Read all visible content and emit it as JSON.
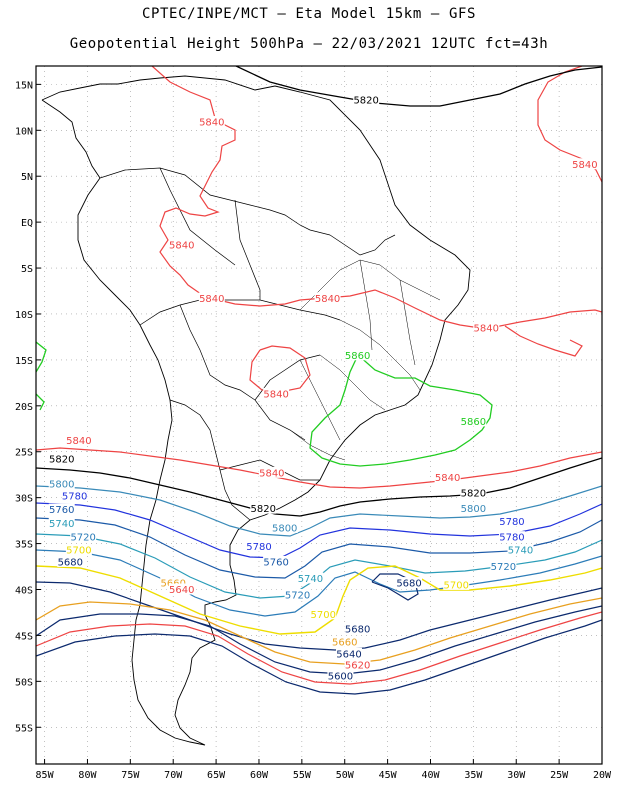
{
  "title": {
    "line1": "CPTEC/INPE/MCT –  Eta Model 15km – GFS",
    "line2": "Geopotential Height 500hPa – 22/03/2021 12UTC fct=43h"
  },
  "map": {
    "lat_range": [
      -59,
      17
    ],
    "lon_range": [
      -86,
      -20
    ],
    "lat_ticks": [
      {
        "value": 15,
        "label": "15N"
      },
      {
        "value": 10,
        "label": "10N"
      },
      {
        "value": 5,
        "label": "5N"
      },
      {
        "value": 0,
        "label": "EQ"
      },
      {
        "value": -5,
        "label": "5S"
      },
      {
        "value": -10,
        "label": "10S"
      },
      {
        "value": -15,
        "label": "15S"
      },
      {
        "value": -20,
        "label": "20S"
      },
      {
        "value": -25,
        "label": "25S"
      },
      {
        "value": -30,
        "label": "30S"
      },
      {
        "value": -35,
        "label": "35S"
      },
      {
        "value": -40,
        "label": "40S"
      },
      {
        "value": -45,
        "label": "45S"
      },
      {
        "value": -50,
        "label": "50S"
      },
      {
        "value": -55,
        "label": "55S"
      }
    ],
    "lon_ticks": [
      {
        "value": -85,
        "label": "85W"
      },
      {
        "value": -80,
        "label": "80W"
      },
      {
        "value": -75,
        "label": "75W"
      },
      {
        "value": -70,
        "label": "70W"
      },
      {
        "value": -65,
        "label": "65W"
      },
      {
        "value": -60,
        "label": "60W"
      },
      {
        "value": -55,
        "label": "55W"
      },
      {
        "value": -50,
        "label": "50W"
      },
      {
        "value": -45,
        "label": "45W"
      },
      {
        "value": -40,
        "label": "40W"
      },
      {
        "value": -35,
        "label": "35W"
      },
      {
        "value": -30,
        "label": "30W"
      },
      {
        "value": -25,
        "label": "25W"
      },
      {
        "value": -20,
        "label": "20W"
      }
    ],
    "grid": true
  },
  "contour_colors": {
    "5860": "#22cc22",
    "5840": "#ee4444",
    "5820": "#000000",
    "5800": "#3a8ab8",
    "5780": "#2233dd",
    "5760": "#1c5aa8",
    "5740": "#2a9cb8",
    "5720": "#2c7cb8",
    "5700": "#eedd00",
    "5680": "#0c2a6e",
    "5660": "#e8a020"
  },
  "contour_labels": [
    {
      "text": "5820",
      "lon": -47.5,
      "lat": 13.3,
      "color": "#000000"
    },
    {
      "text": "5840",
      "lon": -65.5,
      "lat": 10.9,
      "color": "#ee4444"
    },
    {
      "text": "5840",
      "lon": -22,
      "lat": 6.3,
      "color": "#ee4444"
    },
    {
      "text": "5840",
      "lon": -69,
      "lat": -2.5,
      "color": "#ee4444"
    },
    {
      "text": "5840",
      "lon": -65.5,
      "lat": -8.3,
      "color": "#ee4444"
    },
    {
      "text": "5840",
      "lon": -52,
      "lat": -8.3,
      "color": "#ee4444"
    },
    {
      "text": "5840",
      "lon": -33.5,
      "lat": -11.5,
      "color": "#ee4444"
    },
    {
      "text": "5860",
      "lon": -48.5,
      "lat": -14.5,
      "color": "#22cc22"
    },
    {
      "text": "5840",
      "lon": -58,
      "lat": -18.7,
      "color": "#ee4444"
    },
    {
      "text": "5860",
      "lon": -35,
      "lat": -21.7,
      "color": "#22cc22"
    },
    {
      "text": "5840",
      "lon": -81,
      "lat": -23.8,
      "color": "#ee4444"
    },
    {
      "text": "5820",
      "lon": -83,
      "lat": -25.8,
      "color": "#000000"
    },
    {
      "text": "5840",
      "lon": -58.5,
      "lat": -27.3,
      "color": "#ee4444"
    },
    {
      "text": "5840",
      "lon": -38,
      "lat": -27.8,
      "color": "#ee4444"
    },
    {
      "text": "5800",
      "lon": -83,
      "lat": -28.5,
      "color": "#3a8ab8"
    },
    {
      "text": "5820",
      "lon": -35,
      "lat": -29.5,
      "color": "#000000"
    },
    {
      "text": "5780",
      "lon": -81.5,
      "lat": -29.8,
      "color": "#2233dd"
    },
    {
      "text": "5760",
      "lon": -83,
      "lat": -31.3,
      "color": "#1c5aa8"
    },
    {
      "text": "5820",
      "lon": -59.5,
      "lat": -31.2,
      "color": "#000000"
    },
    {
      "text": "5800",
      "lon": -35,
      "lat": -31.2,
      "color": "#3a8ab8"
    },
    {
      "text": "5740",
      "lon": -83,
      "lat": -32.8,
      "color": "#2a9cb8"
    },
    {
      "text": "5780",
      "lon": -30.5,
      "lat": -32.6,
      "color": "#2233dd"
    },
    {
      "text": "5800",
      "lon": -57,
      "lat": -33.3,
      "color": "#3a8ab8"
    },
    {
      "text": "5720",
      "lon": -80.5,
      "lat": -34.3,
      "color": "#2c7cb8"
    },
    {
      "text": "5780",
      "lon": -30.5,
      "lat": -34.3,
      "color": "#2233dd"
    },
    {
      "text": "5780",
      "lon": -60,
      "lat": -35.3,
      "color": "#2233dd"
    },
    {
      "text": "5700",
      "lon": -81,
      "lat": -35.7,
      "color": "#eedd00"
    },
    {
      "text": "5740",
      "lon": -29.5,
      "lat": -35.7,
      "color": "#2a9cb8"
    },
    {
      "text": "5680",
      "lon": -82,
      "lat": -37,
      "color": "#0c2a6e"
    },
    {
      "text": "5760",
      "lon": -58,
      "lat": -37,
      "color": "#1c5aa8"
    },
    {
      "text": "5720",
      "lon": -31.5,
      "lat": -37.5,
      "color": "#2c7cb8"
    },
    {
      "text": "5740",
      "lon": -54,
      "lat": -38.8,
      "color": "#2a9cb8"
    },
    {
      "text": "5680",
      "lon": -42.5,
      "lat": -39.3,
      "color": "#0c2a6e"
    },
    {
      "text": "5660",
      "lon": -70,
      "lat": -39.3,
      "color": "#e8a020"
    },
    {
      "text": "5700",
      "lon": -37,
      "lat": -39.5,
      "color": "#eedd00"
    },
    {
      "text": "5640",
      "lon": -69,
      "lat": -40,
      "color": "#ee4444"
    },
    {
      "text": "5720",
      "lon": -55.5,
      "lat": -40.6,
      "color": "#2c7cb8"
    },
    {
      "text": "5700",
      "lon": -52.5,
      "lat": -42.7,
      "color": "#eedd00"
    },
    {
      "text": "5680",
      "lon": -48.5,
      "lat": -44.3,
      "color": "#0c2a6e"
    },
    {
      "text": "5660",
      "lon": -50,
      "lat": -45.7,
      "color": "#e8a020"
    },
    {
      "text": "5640",
      "lon": -49.5,
      "lat": -47,
      "color": "#0c2a6e"
    },
    {
      "text": "5620",
      "lon": -48.5,
      "lat": -48.2,
      "color": "#ee4444"
    },
    {
      "text": "5600",
      "lon": -50.5,
      "lat": -49.4,
      "color": "#0c2a6e"
    }
  ]
}
